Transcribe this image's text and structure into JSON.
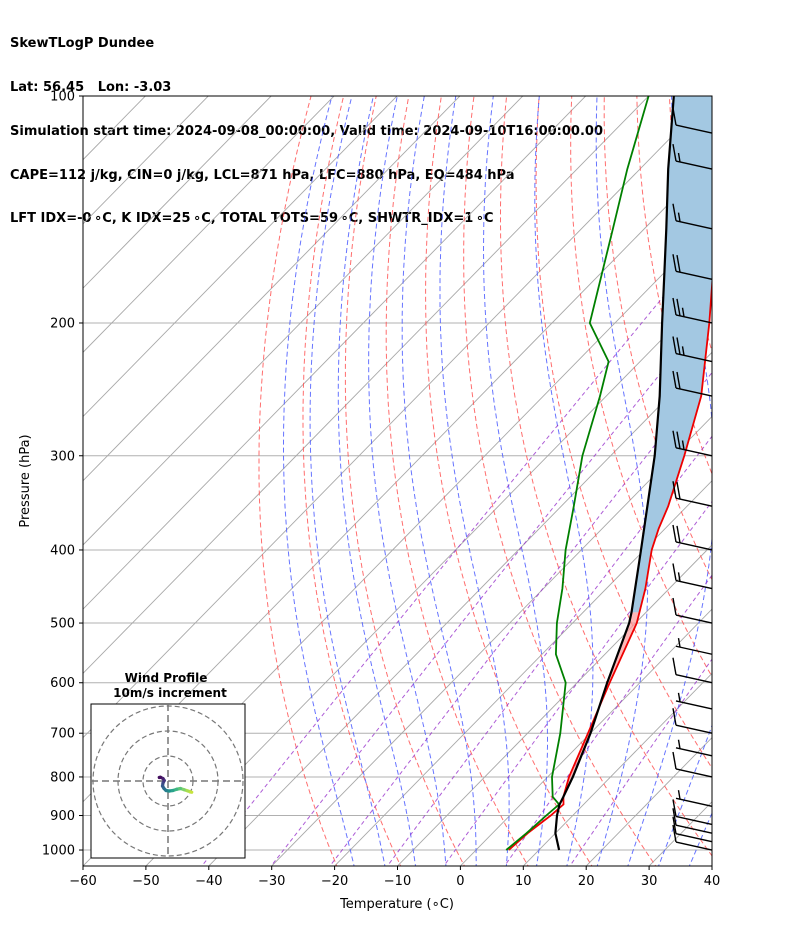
{
  "header": {
    "title": "SkewTLogP Dundee",
    "location": "Lat: 56.45   Lon: -3.03",
    "times": "Simulation start time: 2024-09-08_00:00:00, Valid time: 2024-09-10T16:00:00.00",
    "params1": "CAPE=112 j/kg, CIN=0 j/kg, LCL=871 hPa, LFC=880 hPa, EQ=484 hPa",
    "params2": "LFT IDX=-0 ∘C, K IDX=25 ∘C, TOTAL TOTS=59 ∘C, SHWTR_IDX=1 ∘C"
  },
  "chart_data": [
    {
      "type": "line",
      "subtype": "skew-T log-P diagram",
      "xlabel": "Temperature (∘C)",
      "ylabel": "Pressure (hPa)",
      "xlim": [
        -60,
        40
      ],
      "ylim": [
        1050,
        100
      ],
      "y_scale": "log",
      "x_ticks": [
        -60,
        -50,
        -40,
        -30,
        -20,
        -10,
        0,
        10,
        20,
        30,
        40
      ],
      "x_tick_labels": [
        "−60",
        "−50",
        "−40",
        "−30",
        "−20",
        "−10",
        "0",
        "10",
        "20",
        "30",
        "40"
      ],
      "y_ticks": [
        1000,
        900,
        800,
        700,
        600,
        500,
        400,
        300,
        200,
        100
      ],
      "y_tick_labels": [
        "1000",
        "900",
        "800",
        "700",
        "600",
        "500",
        "400",
        "300",
        "200",
        "100"
      ],
      "grid": true,
      "background_lines": [
        "skewed isotherms (grey)",
        "dry adiabats (red dashed)",
        "moist adiabats (blue dashed)",
        "mixing ratio lines (purple dashed)"
      ],
      "series": [
        {
          "role": "temperature",
          "color": "#ee0000",
          "points": [
            [
              1000,
              5.2
            ],
            [
              950,
              5.6
            ],
            [
              900,
              6.5
            ],
            [
              870,
              6.8
            ],
            [
              850,
              5.6
            ],
            [
              800,
              3.4
            ],
            [
              700,
              -0.4
            ],
            [
              600,
              -4.8
            ],
            [
              500,
              -9.8
            ],
            [
              450,
              -13.8
            ],
            [
              400,
              -18.8
            ],
            [
              375,
              -21.0
            ],
            [
              350,
              -23.0
            ],
            [
              300,
              -28.3
            ],
            [
              250,
              -34.9
            ],
            [
              200,
              -45.0
            ],
            [
              175,
              -51.3
            ],
            [
              150,
              -58.2
            ],
            [
              125,
              -65.3
            ],
            [
              100,
              -73.0
            ]
          ]
        },
        {
          "role": "dewpoint",
          "color": "#008000",
          "points": [
            [
              1000,
              4.8
            ],
            [
              950,
              5.4
            ],
            [
              900,
              5.8
            ],
            [
              870,
              6.1
            ],
            [
              850,
              3.9
            ],
            [
              800,
              0.7
            ],
            [
              700,
              -4.8
            ],
            [
              600,
              -11.8
            ],
            [
              550,
              -17.8
            ],
            [
              500,
              -22.5
            ],
            [
              450,
              -27.0
            ],
            [
              400,
              -32.5
            ],
            [
              350,
              -38.0
            ],
            [
              300,
              -44.5
            ],
            [
              250,
              -51.0
            ],
            [
              225,
              -55.0
            ],
            [
              200,
              -64.0
            ],
            [
              150,
              -75.0
            ],
            [
              125,
              -82.0
            ],
            [
              100,
              -90.0
            ]
          ]
        },
        {
          "role": "parcel profile",
          "color": "#000000",
          "points": [
            [
              1000,
              13.2
            ],
            [
              950,
              10.0
            ],
            [
              900,
              7.5
            ],
            [
              871,
              6.2
            ],
            [
              850,
              5.6
            ],
            [
              800,
              4.0
            ],
            [
              700,
              0.0
            ],
            [
              600,
              -5.2
            ],
            [
              500,
              -11.0
            ],
            [
              484,
              -12.3
            ],
            [
              400,
              -20.5
            ],
            [
              300,
              -33.0
            ],
            [
              250,
              -41.5
            ],
            [
              200,
              -52.5
            ],
            [
              175,
              -59.0
            ],
            [
              150,
              -66.5
            ],
            [
              125,
              -75.5
            ],
            [
              100,
              -86.0
            ]
          ]
        }
      ],
      "wind_barbs": [
        {
          "p": 1000,
          "speed_kt": 10
        },
        {
          "p": 975,
          "speed_kt": 10
        },
        {
          "p": 950,
          "speed_kt": 10
        },
        {
          "p": 925,
          "speed_kt": 10
        },
        {
          "p": 875,
          "speed_kt": 5
        },
        {
          "p": 800,
          "speed_kt": 10
        },
        {
          "p": 750,
          "speed_kt": 5
        },
        {
          "p": 700,
          "speed_kt": 10
        },
        {
          "p": 650,
          "speed_kt": 5
        },
        {
          "p": 600,
          "speed_kt": 10
        },
        {
          "p": 550,
          "speed_kt": 5
        },
        {
          "p": 500,
          "speed_kt": 10
        },
        {
          "p": 450,
          "speed_kt": 15
        },
        {
          "p": 400,
          "speed_kt": 20
        },
        {
          "p": 350,
          "speed_kt": 20
        },
        {
          "p": 300,
          "speed_kt": 25
        },
        {
          "p": 250,
          "speed_kt": 20
        },
        {
          "p": 225,
          "speed_kt": 25
        },
        {
          "p": 200,
          "speed_kt": 25
        },
        {
          "p": 175,
          "speed_kt": 20
        },
        {
          "p": 150,
          "speed_kt": 15
        },
        {
          "p": 125,
          "speed_kt": 15
        },
        {
          "p": 112,
          "speed_kt": 10
        }
      ]
    },
    {
      "type": "line",
      "subtype": "hodograph",
      "title": "Wind Profile",
      "subtitle": "10m/s increment",
      "rings_ms": [
        10,
        20,
        30
      ],
      "points_uv": [
        [
          9.5,
          -4.5
        ],
        [
          8.0,
          -4.0
        ],
        [
          6.5,
          -3.5
        ],
        [
          5.0,
          -3.0
        ],
        [
          3.5,
          -3.3
        ],
        [
          2.0,
          -3.8
        ],
        [
          0.5,
          -4.0
        ],
        [
          -0.8,
          -3.8
        ],
        [
          -1.6,
          -3.0
        ],
        [
          -2.2,
          -2.0
        ],
        [
          -2.0,
          -0.8
        ],
        [
          -1.5,
          0.2
        ],
        [
          -2.0,
          1.0
        ],
        [
          -3.0,
          1.5
        ],
        [
          -3.5,
          1.4
        ]
      ]
    }
  ]
}
